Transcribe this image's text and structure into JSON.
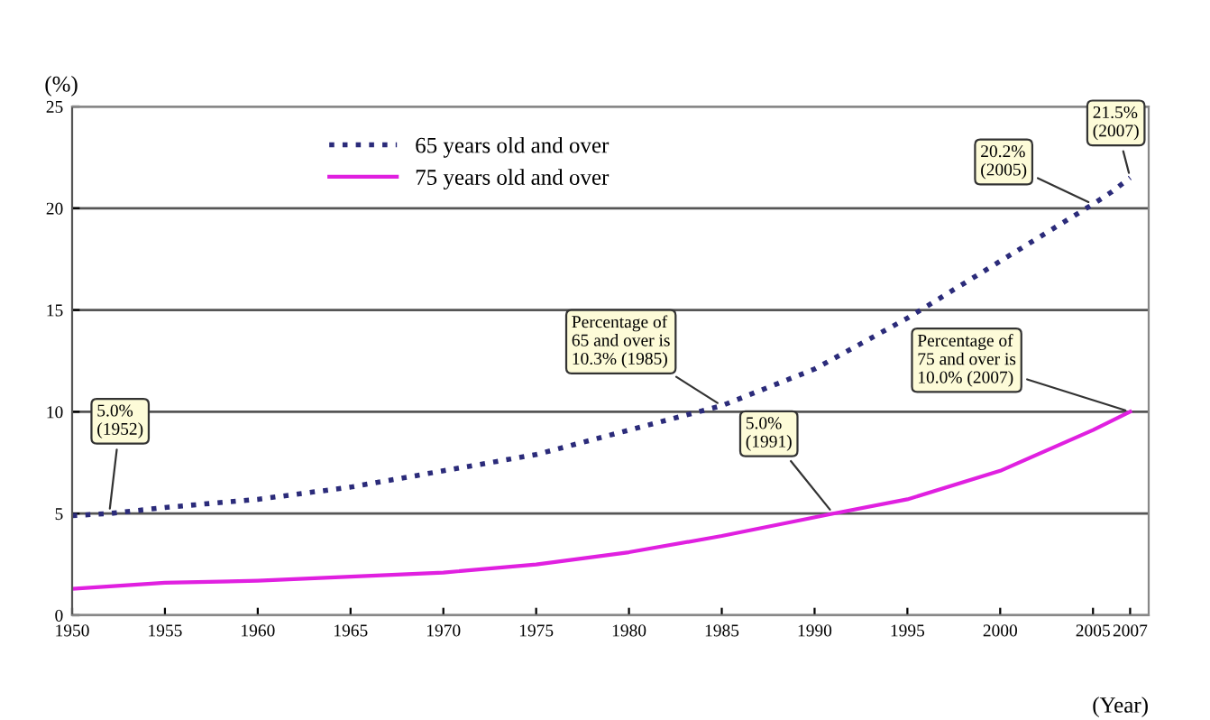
{
  "chart_data": {
    "type": "line",
    "xlabel": "(Year)",
    "ylabel": "(%)",
    "x": [
      1950,
      1952,
      1955,
      1960,
      1965,
      1970,
      1975,
      1980,
      1985,
      1990,
      1995,
      2000,
      2005,
      2006,
      2007
    ],
    "series": [
      {
        "name": "65 years old and over",
        "color": "#2b2b7a",
        "line_style": "dotted",
        "values": [
          4.9,
          5.0,
          5.3,
          5.7,
          6.3,
          7.1,
          7.9,
          9.1,
          10.3,
          12.1,
          14.6,
          17.4,
          20.2,
          20.8,
          21.5
        ]
      },
      {
        "name": "75 years old and over",
        "color": "#e020e0",
        "line_style": "solid",
        "x": [
          1950,
          1955,
          1960,
          1965,
          1970,
          1975,
          1980,
          1985,
          1991,
          1995,
          2000,
          2005,
          2007
        ],
        "values": [
          1.3,
          1.6,
          1.7,
          1.9,
          2.1,
          2.5,
          3.1,
          3.9,
          5.0,
          5.7,
          7.1,
          9.1,
          10.0
        ]
      }
    ],
    "xlim": [
      1950,
      2008
    ],
    "xticks": [
      1950,
      1955,
      1960,
      1965,
      1970,
      1975,
      1980,
      1985,
      1990,
      1995,
      2000,
      2005,
      2007
    ],
    "ylim": [
      0,
      25
    ],
    "yticks": [
      0,
      5,
      10,
      15,
      20,
      25
    ],
    "grid": "y",
    "legend": "top left",
    "annotations": [
      {
        "text": "5.0%\n(1952)",
        "x": 1952,
        "y": 5.0
      },
      {
        "text": "Percentage of\n65 and over is\n10.3% (1985)",
        "x": 1985,
        "y": 10.3
      },
      {
        "text": "20.2%\n(2005)",
        "x": 2005,
        "y": 20.2
      },
      {
        "text": "21.5%\n(2007)",
        "x": 2007,
        "y": 21.5
      },
      {
        "text": "5.0%\n(1991)",
        "x": 1991,
        "y": 5.0
      },
      {
        "text": "Percentage of\n75 and over is\n10.0% (2007)",
        "x": 2007,
        "y": 10.0
      }
    ]
  }
}
